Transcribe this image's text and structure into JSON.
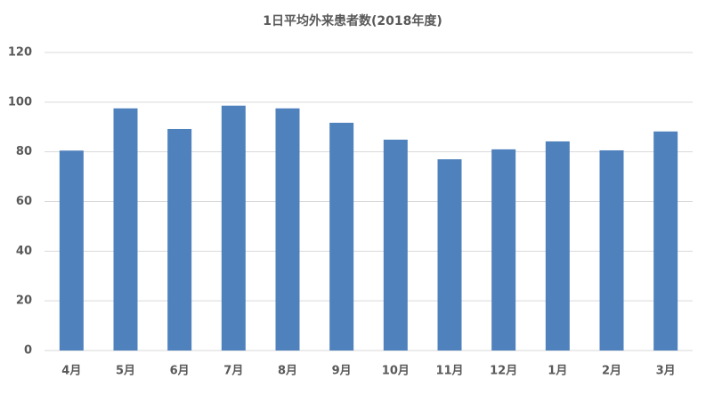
{
  "chart_data": {
    "type": "bar",
    "title": "1日平均外来患者数(2018年度)",
    "categories": [
      "4月",
      "5月",
      "6月",
      "7月",
      "8月",
      "9月",
      "10月",
      "11月",
      "12月",
      "1月",
      "2月",
      "3月"
    ],
    "values": [
      80.5,
      97.5,
      89.2,
      98.6,
      97.5,
      91.7,
      84.9,
      77,
      81,
      84.2,
      80.6,
      88.2
    ],
    "color": "#4f81bd",
    "ylim": [
      0,
      120
    ],
    "yticks": [
      0,
      20,
      40,
      60,
      80,
      100,
      120
    ],
    "grid": true
  }
}
